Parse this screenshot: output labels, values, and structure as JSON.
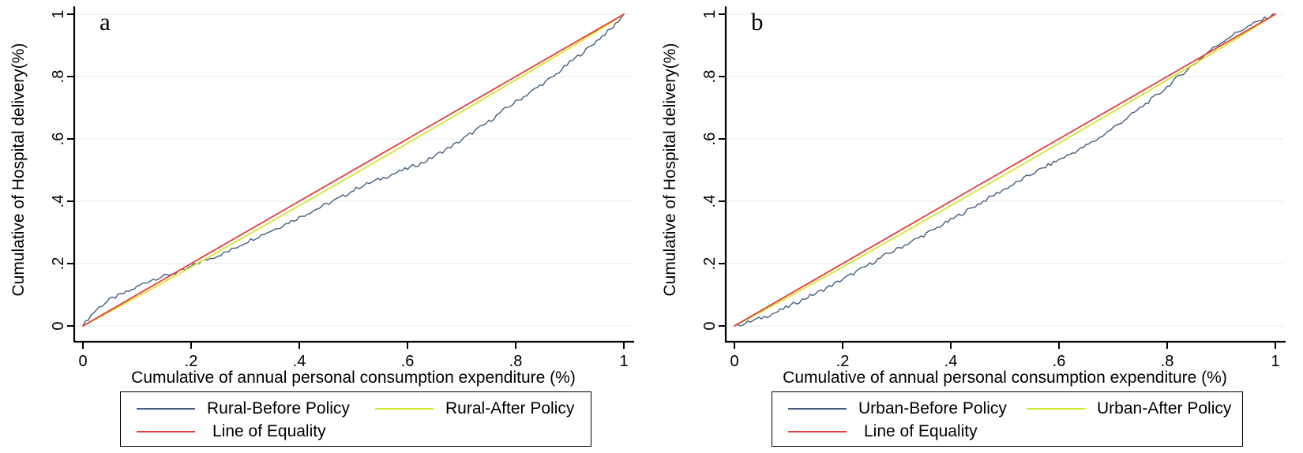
{
  "colors": {
    "background": "#ffffff",
    "axis": "#000000",
    "grid": "#ededed",
    "text": "#000000",
    "before": "#44607e",
    "after": "#d3e72e",
    "equality": "#e23d3d"
  },
  "chart_data": [
    {
      "type": "line",
      "panel_label": "a",
      "xlabel": "Cumulative of annual personal consumption expenditure (%)",
      "ylabel": "Cumulative of Hospital delivery(%)",
      "xlim": [
        0,
        1
      ],
      "ylim": [
        0,
        1
      ],
      "ticks": [
        0,
        0.2,
        0.4,
        0.6,
        0.8,
        1
      ],
      "tick_labels": [
        "0",
        ".2",
        ".4",
        ".6",
        ".8",
        "1"
      ],
      "grid": "horizontal",
      "legend_position": "boxed-below",
      "series": [
        {
          "name": "Rural-Before Policy",
          "color": "#44607e",
          "style": "noisy",
          "width": 1.4,
          "points": [
            [
              0,
              0
            ],
            [
              0.015,
              0.035
            ],
            [
              0.03,
              0.06
            ],
            [
              0.05,
              0.085
            ],
            [
              0.07,
              0.1
            ],
            [
              0.09,
              0.115
            ],
            [
              0.11,
              0.135
            ],
            [
              0.13,
              0.15
            ],
            [
              0.15,
              0.16
            ],
            [
              0.17,
              0.17
            ],
            [
              0.19,
              0.18
            ],
            [
              0.21,
              0.2
            ],
            [
              0.24,
              0.22
            ],
            [
              0.27,
              0.24
            ],
            [
              0.3,
              0.268
            ],
            [
              0.33,
              0.292
            ],
            [
              0.36,
              0.315
            ],
            [
              0.39,
              0.34
            ],
            [
              0.42,
              0.365
            ],
            [
              0.45,
              0.39
            ],
            [
              0.48,
              0.415
            ],
            [
              0.51,
              0.445
            ],
            [
              0.54,
              0.465
            ],
            [
              0.57,
              0.485
            ],
            [
              0.6,
              0.505
            ],
            [
              0.63,
              0.525
            ],
            [
              0.66,
              0.555
            ],
            [
              0.69,
              0.585
            ],
            [
              0.72,
              0.62
            ],
            [
              0.75,
              0.655
            ],
            [
              0.78,
              0.695
            ],
            [
              0.81,
              0.73
            ],
            [
              0.84,
              0.765
            ],
            [
              0.87,
              0.8
            ],
            [
              0.9,
              0.845
            ],
            [
              0.93,
              0.885
            ],
            [
              0.96,
              0.93
            ],
            [
              0.98,
              0.958
            ],
            [
              1,
              1
            ]
          ]
        },
        {
          "name": "Rural-After Policy",
          "color": "#d3e72e",
          "style": "smooth",
          "width": 1.8,
          "points": [
            [
              0,
              0
            ],
            [
              0.05,
              0.046
            ],
            [
              0.1,
              0.093
            ],
            [
              0.2,
              0.189
            ],
            [
              0.3,
              0.287
            ],
            [
              0.4,
              0.386
            ],
            [
              0.5,
              0.485
            ],
            [
              0.6,
              0.586
            ],
            [
              0.7,
              0.687
            ],
            [
              0.8,
              0.789
            ],
            [
              0.9,
              0.892
            ],
            [
              0.95,
              0.945
            ],
            [
              1,
              1
            ]
          ]
        },
        {
          "name": "Line of Equality",
          "color": "#e23d3d",
          "style": "straight",
          "width": 1.8,
          "points": [
            [
              0,
              0
            ],
            [
              1,
              1
            ]
          ]
        }
      ]
    },
    {
      "type": "line",
      "panel_label": "b",
      "xlabel": "Cumulative of annual personal consumption expenditure (%)",
      "ylabel": "Cumulative of Hospital delivery(%)",
      "xlim": [
        0,
        1
      ],
      "ylim": [
        0,
        1
      ],
      "ticks": [
        0,
        0.2,
        0.4,
        0.6,
        0.8,
        1
      ],
      "tick_labels": [
        "0",
        ".2",
        ".4",
        ".6",
        ".8",
        "1"
      ],
      "grid": "horizontal",
      "legend_position": "boxed-below",
      "series": [
        {
          "name": "Urban-Before Policy",
          "color": "#44607e",
          "style": "noisy",
          "width": 1.4,
          "points": [
            [
              0,
              0
            ],
            [
              0.02,
              0.008
            ],
            [
              0.04,
              0.02
            ],
            [
              0.06,
              0.032
            ],
            [
              0.08,
              0.046
            ],
            [
              0.1,
              0.062
            ],
            [
              0.13,
              0.088
            ],
            [
              0.16,
              0.112
            ],
            [
              0.19,
              0.14
            ],
            [
              0.22,
              0.168
            ],
            [
              0.25,
              0.198
            ],
            [
              0.28,
              0.228
            ],
            [
              0.31,
              0.255
            ],
            [
              0.34,
              0.282
            ],
            [
              0.37,
              0.31
            ],
            [
              0.4,
              0.34
            ],
            [
              0.43,
              0.37
            ],
            [
              0.46,
              0.4
            ],
            [
              0.49,
              0.43
            ],
            [
              0.52,
              0.458
            ],
            [
              0.55,
              0.488
            ],
            [
              0.58,
              0.515
            ],
            [
              0.61,
              0.542
            ],
            [
              0.64,
              0.568
            ],
            [
              0.67,
              0.598
            ],
            [
              0.7,
              0.635
            ],
            [
              0.73,
              0.672
            ],
            [
              0.76,
              0.712
            ],
            [
              0.79,
              0.752
            ],
            [
              0.82,
              0.798
            ],
            [
              0.85,
              0.84
            ],
            [
              0.88,
              0.885
            ],
            [
              0.91,
              0.922
            ],
            [
              0.94,
              0.952
            ],
            [
              0.97,
              0.978
            ],
            [
              1,
              1
            ]
          ]
        },
        {
          "name": "Urban-After Policy",
          "color": "#d3e72e",
          "style": "smooth",
          "width": 1.8,
          "points": [
            [
              0,
              0
            ],
            [
              0.05,
              0.046
            ],
            [
              0.1,
              0.093
            ],
            [
              0.2,
              0.189
            ],
            [
              0.3,
              0.287
            ],
            [
              0.4,
              0.386
            ],
            [
              0.5,
              0.485
            ],
            [
              0.6,
              0.586
            ],
            [
              0.7,
              0.687
            ],
            [
              0.8,
              0.789
            ],
            [
              0.9,
              0.892
            ],
            [
              0.95,
              0.945
            ],
            [
              1,
              1
            ]
          ]
        },
        {
          "name": "Line of Equality",
          "color": "#e23d3d",
          "style": "straight",
          "width": 1.8,
          "points": [
            [
              0,
              0
            ],
            [
              1,
              1
            ]
          ]
        }
      ]
    }
  ]
}
